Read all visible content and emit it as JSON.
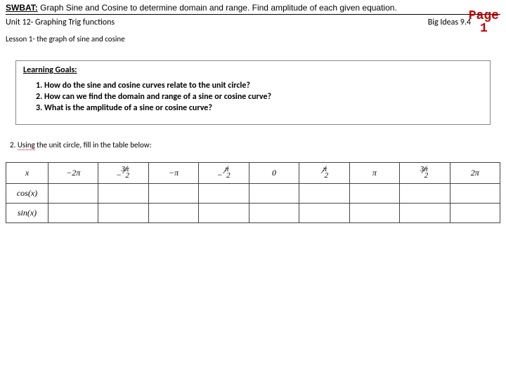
{
  "swbat": {
    "label": "SWBAT:",
    "text": " Graph Sine and Cosine to determine domain and range.  Find amplitude of each given equation."
  },
  "header": {
    "unit": "Unit 12- Graphing Trig functions",
    "bigideas": "Big Ideas 9.4"
  },
  "pageNumber": {
    "label": "Page",
    "num": "1"
  },
  "lesson": "Lesson 1- the graph of sine and cosine",
  "goals": {
    "title": "Learning Goals:",
    "items": [
      "How do the sine and cosine curves relate to the unit circle?",
      "How can we find the domain and range of a sine or cosine curve?",
      "What is the amplitude of a sine or cosine curve?"
    ]
  },
  "q2": {
    "num": "2.  ",
    "under": "Using",
    "rest": " the unit circle, fill in the table below:"
  },
  "table": {
    "rowHeads": [
      "x",
      "cos(x)",
      "sin(x)"
    ],
    "xvals": [
      {
        "type": "plain",
        "text": "−2π"
      },
      {
        "type": "frac",
        "neg": true,
        "num": "3π",
        "den": "2"
      },
      {
        "type": "plain",
        "text": "−π"
      },
      {
        "type": "frac",
        "neg": true,
        "num": "π",
        "den": "2"
      },
      {
        "type": "plain",
        "text": "0"
      },
      {
        "type": "frac",
        "neg": false,
        "num": "π",
        "den": "2"
      },
      {
        "type": "plain",
        "text": "π"
      },
      {
        "type": "frac",
        "neg": false,
        "num": "3π",
        "den": "2"
      },
      {
        "type": "plain",
        "text": "2π"
      }
    ]
  },
  "colors": {
    "pageNum": "#c00000",
    "border": "#444444",
    "bg": "#ffffff"
  }
}
